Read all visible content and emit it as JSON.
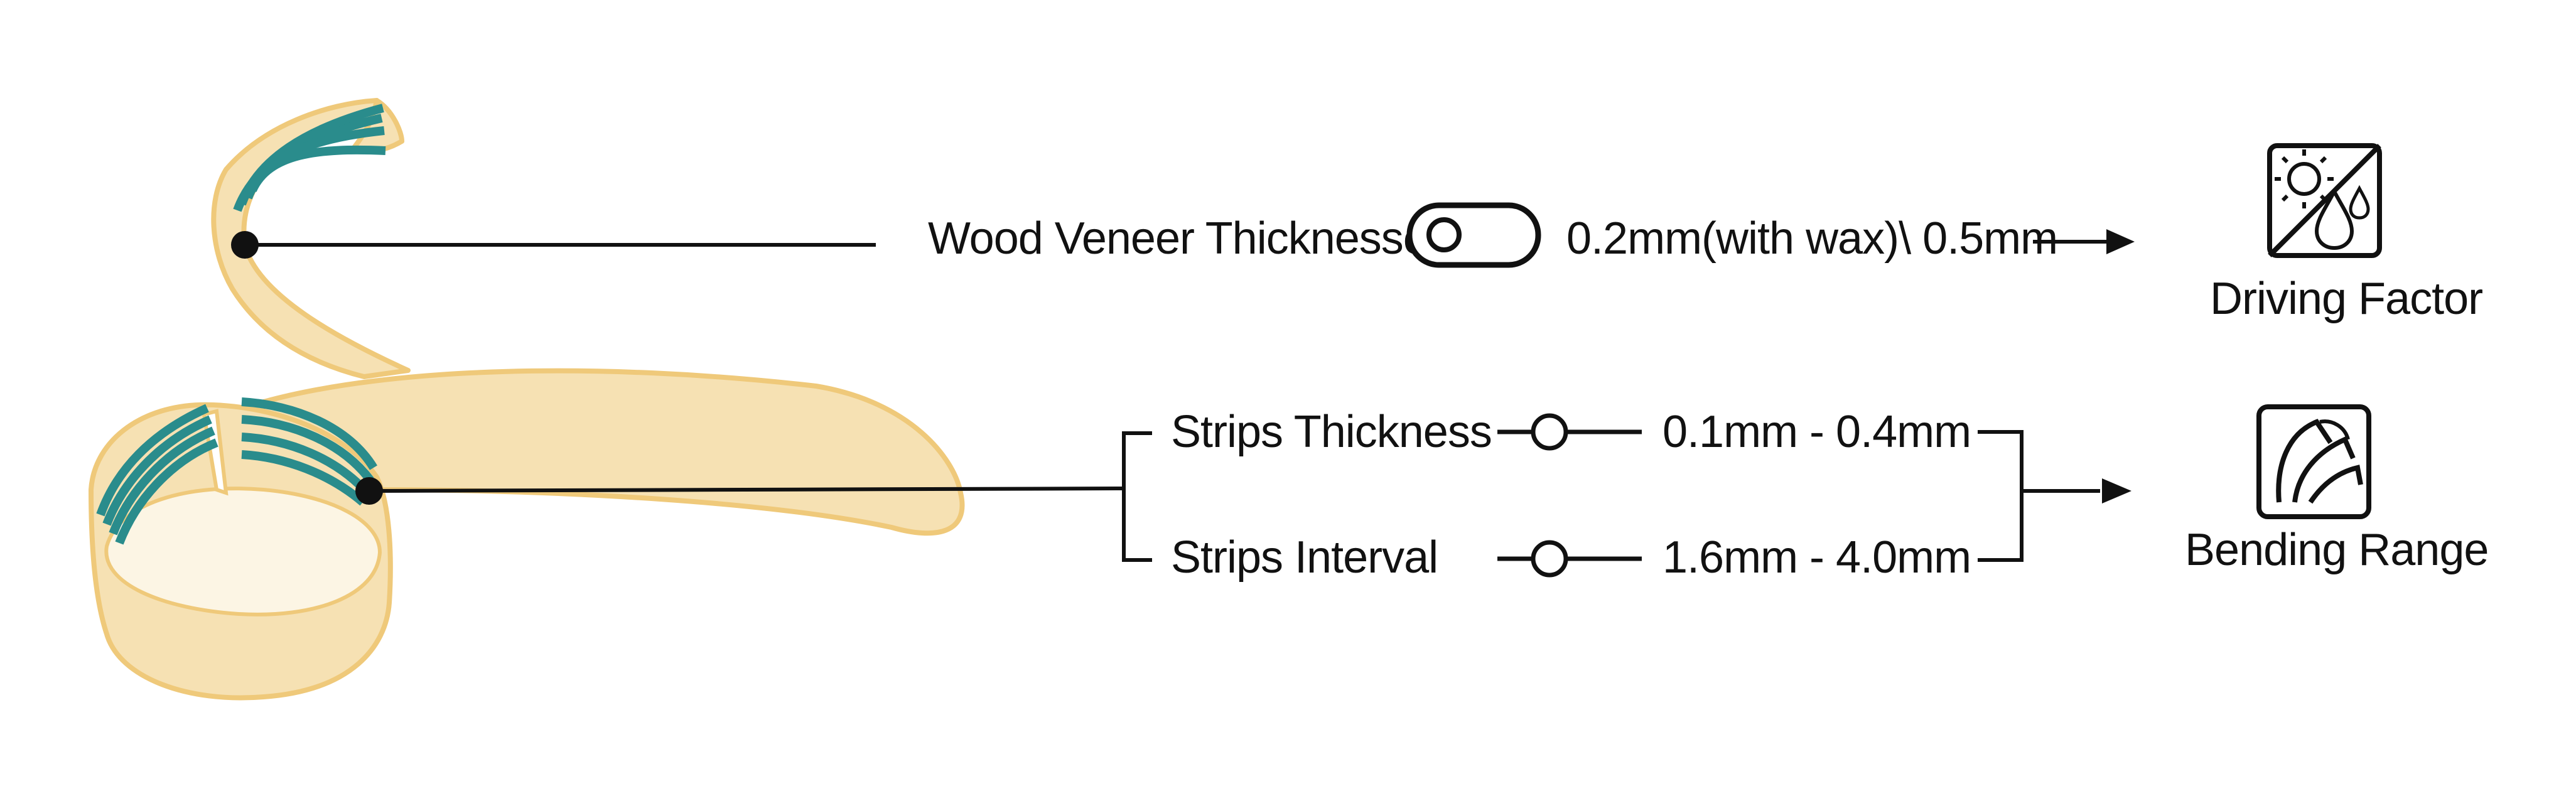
{
  "colors": {
    "veneer_fill": "#f6e1b3",
    "veneer_stroke": "#efc97a",
    "strip_color": "#2a8c8c",
    "line_color": "#111111",
    "background": "#ffffff"
  },
  "upper_row": {
    "parameter_label": "Wood Veneer Thicknesses",
    "parameter_control_icon": "toggle-switch-icon",
    "value_text": "0.2mm(with wax)\\ 0.5mm",
    "outcome_icon": "sun-rain-weather-icon",
    "outcome_label": "Driving Factor"
  },
  "lower_row": {
    "parameters": [
      {
        "label": "Strips Thickness",
        "control_icon": "slider-icon",
        "value_text": "0.1mm - 0.4mm"
      },
      {
        "label": "Strips Interval",
        "control_icon": "slider-icon",
        "value_text": "1.6mm - 4.0mm"
      }
    ],
    "outcome_icon": "bending-sheets-icon",
    "outcome_label": "Bending Range"
  }
}
